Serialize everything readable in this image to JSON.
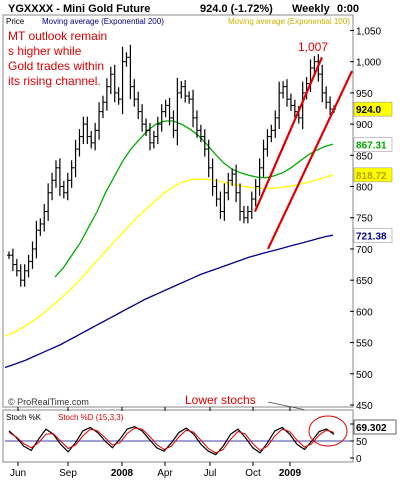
{
  "header": {
    "title": "YGXXXX - Mini Gold Future",
    "quote": "924.0 (-1.72%)",
    "interval": "Weekly",
    "time": "0:00"
  },
  "main_panel": {
    "price_label": "Price",
    "legend_ema200": "Moving average (Exponential 200)",
    "legend_ema_other": "Moving average (Exponential 100)",
    "watermark": "© ProRealTime.com",
    "annotation_text": [
      "MT outlook remain",
      "s higher while",
      "Gold trades within",
      "its rising channel."
    ],
    "peak_label": "1,007",
    "y_ticks": [
      "1,050",
      "1,000",
      "950",
      "900",
      "850",
      "800",
      "750",
      "700",
      "650",
      "600",
      "550",
      "500",
      "450"
    ],
    "value_badges": [
      {
        "text": "924.0",
        "value": 924.0,
        "bg": "#ffff00",
        "fg": "#000000"
      },
      {
        "text": "867.31",
        "value": 867.31,
        "bg": "#ffffff",
        "fg": "#00aa00"
      },
      {
        "text": "818.72",
        "value": 818.72,
        "bg": "#ffff00",
        "fg": "#b8a000"
      },
      {
        "text": "721.38",
        "value": 721.38,
        "bg": "#ffffff",
        "fg": "#00008b"
      }
    ]
  },
  "stoch_panel": {
    "label": "Stoch %K",
    "label_params": "Stoch %D (15,3,3)",
    "annotation": "Lower stochs",
    "y_ticks": [
      "100",
      "50",
      "0"
    ],
    "value_badge": "69.302"
  },
  "x_ticks": [
    "Jun",
    "Sep",
    "2008",
    "Apr",
    "Jul",
    "Oct",
    "2009"
  ],
  "colors": {
    "price_bars": "#000000",
    "ema_green": "#00aa00",
    "ema_yellow": "#ffff00",
    "ema_200": "#00008b",
    "channel": "#dd0000",
    "annotation": "#dd0000",
    "stoch_k": "#000000",
    "stoch_d": "#dd0000",
    "stoch_ref": "#00008b"
  },
  "chart_data": [
    {
      "type": "bar",
      "title": "YGXXXX - Mini Gold Future",
      "xlabel": "",
      "ylabel": "Price",
      "ylim": [
        450,
        1070
      ],
      "x_ticks": [
        "Jun",
        "Sep",
        "2008",
        "Apr",
        "Jul",
        "Oct",
        "2009"
      ],
      "weekly_ohlc_close": [
        690,
        675,
        665,
        650,
        665,
        680,
        700,
        730,
        740,
        760,
        790,
        810,
        830,
        800,
        790,
        810,
        830,
        860,
        880,
        900,
        880,
        870,
        890,
        920,
        935,
        960,
        980,
        950,
        940,
        1000,
        1007,
        960,
        940,
        920,
        900,
        890,
        870,
        880,
        900,
        920,
        930,
        910,
        890,
        950,
        960,
        945,
        940,
        910,
        890,
        880,
        860,
        830,
        800,
        780,
        760,
        790,
        810,
        820,
        790,
        760,
        750,
        760,
        780,
        800,
        830,
        860,
        880,
        890,
        910,
        950,
        960,
        940,
        930,
        920,
        910,
        950,
        965,
        990,
        1000,
        980,
        950,
        935,
        924,
        924
      ],
      "series": [
        {
          "name": "Moving average (Exponential 200)",
          "values": [
            510,
            514,
            518,
            522,
            527,
            532,
            537,
            542,
            547,
            553,
            559,
            565,
            571,
            577,
            583,
            589,
            595,
            601,
            607,
            613,
            619,
            624,
            629,
            634,
            639,
            644,
            649,
            654,
            659,
            663,
            667,
            671,
            675,
            679,
            683,
            687,
            690,
            693,
            696,
            699,
            702,
            705,
            708,
            711,
            714,
            717,
            720,
            722
          ]
        },
        {
          "name": "Moving average (Exponential 100)",
          "values": [
            560,
            566,
            574,
            583,
            593,
            605,
            617,
            630,
            644,
            659,
            675,
            691,
            707,
            722,
            737,
            752,
            765,
            778,
            790,
            800,
            807,
            811,
            812,
            811,
            809,
            806,
            803,
            800,
            798,
            797,
            797,
            798,
            800,
            803,
            806,
            810,
            814,
            819
          ]
        },
        {
          "name": "",
          "values": [
            655,
            670,
            690,
            710,
            735,
            760,
            790,
            815,
            840,
            860,
            875,
            890,
            900,
            905,
            905,
            900,
            892,
            882,
            868,
            852,
            838,
            828,
            822,
            818,
            815,
            814,
            817,
            822,
            830,
            840,
            850,
            858,
            864,
            868
          ]
        }
      ],
      "channel_lines": [
        {
          "from": [
            690,
            "Oct"
          ],
          "to": [
            1007,
            "2009"
          ]
        },
        {
          "from": [
            700,
            "Oct"
          ],
          "to": [
            960,
            "2009"
          ]
        }
      ]
    },
    {
      "type": "line",
      "title": "Stoch %K Stoch %D (15,3,3)",
      "ylim": [
        0,
        100
      ],
      "y_ticks": [
        0,
        50,
        100
      ],
      "series": [
        {
          "name": "Stoch %K",
          "values": [
            80,
            60,
            35,
            22,
            55,
            85,
            70,
            40,
            18,
            45,
            80,
            90,
            75,
            50,
            30,
            55,
            85,
            92,
            80,
            55,
            30,
            20,
            45,
            75,
            88,
            70,
            40,
            20,
            10,
            35,
            70,
            85,
            60,
            30,
            15,
            45,
            80,
            90,
            70,
            40,
            25,
            50,
            78,
            85,
            69.3
          ]
        },
        {
          "name": "Stoch %D",
          "values": [
            75,
            62,
            42,
            30,
            45,
            70,
            72,
            50,
            28,
            38,
            65,
            85,
            80,
            60,
            38,
            45,
            72,
            88,
            85,
            65,
            40,
            25,
            35,
            62,
            82,
            76,
            52,
            28,
            15,
            25,
            55,
            78,
            70,
            42,
            22,
            35,
            65,
            85,
            78,
            52,
            32,
            42,
            68,
            82,
            75
          ]
        }
      ]
    }
  ]
}
